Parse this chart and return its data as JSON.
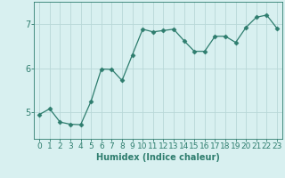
{
  "x": [
    0,
    1,
    2,
    3,
    4,
    5,
    6,
    7,
    8,
    9,
    10,
    11,
    12,
    13,
    14,
    15,
    16,
    17,
    18,
    19,
    20,
    21,
    22,
    23
  ],
  "y": [
    4.95,
    5.08,
    4.78,
    4.73,
    4.72,
    5.25,
    5.98,
    5.97,
    5.72,
    6.3,
    6.88,
    6.82,
    6.85,
    6.88,
    6.62,
    6.38,
    6.38,
    6.72,
    6.72,
    6.58,
    6.92,
    7.15,
    7.2,
    6.9
  ],
  "line_color": "#2e7d6e",
  "marker": "D",
  "marker_size": 2.5,
  "bg_color": "#d8f0f0",
  "grid_color": "#b8d8d8",
  "xlabel": "Humidex (Indice chaleur)",
  "xlabel_fontsize": 7,
  "tick_fontsize": 6.5,
  "ylabel_ticks": [
    5,
    6,
    7
  ],
  "xlim": [
    -0.5,
    23.5
  ],
  "ylim": [
    4.4,
    7.5
  ]
}
